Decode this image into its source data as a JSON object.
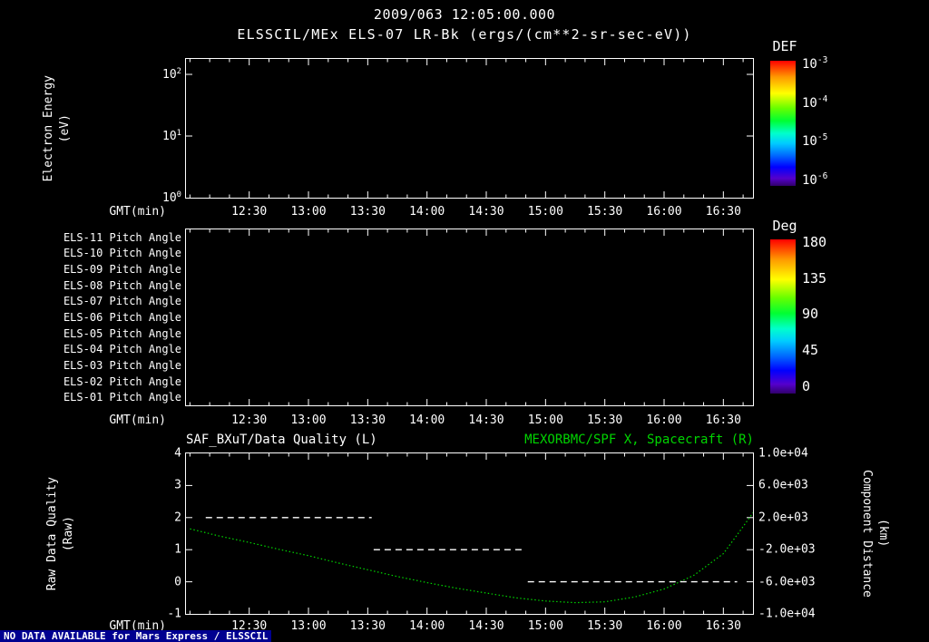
{
  "colors": {
    "background": "#000000",
    "foreground": "#ffffff",
    "accent_green": "#00d400",
    "footer_strip": "#000090"
  },
  "header": {
    "title": "2009/063 12:05:00.000",
    "subtitle": "ELSSCIL/MEx ELS-07 LR-Bk  (ergs/(cm**2-sr-sec-eV))"
  },
  "footer": {
    "message": "NO DATA AVAILABLE for Mars Express / ELSSCIL"
  },
  "time_axis": {
    "label": "GMT(min)",
    "domain": [
      718,
      1005
    ],
    "minor_step": 10,
    "ticks": [
      {
        "m": 750,
        "label": "12:30"
      },
      {
        "m": 780,
        "label": "13:00"
      },
      {
        "m": 810,
        "label": "13:30"
      },
      {
        "m": 840,
        "label": "14:00"
      },
      {
        "m": 870,
        "label": "14:30"
      },
      {
        "m": 900,
        "label": "15:00"
      },
      {
        "m": 930,
        "label": "15:30"
      },
      {
        "m": 960,
        "label": "16:00"
      },
      {
        "m": 990,
        "label": "16:30"
      }
    ]
  },
  "chart_data": [
    {
      "type": "heatmap",
      "name": "energy-spectrogram",
      "ylabel": "Electron Energy",
      "ylabel_units": "(eV)",
      "yscale": "log",
      "ylim": [
        1,
        178
      ],
      "yticks": [
        {
          "v": 100,
          "label": "10^2"
        },
        {
          "v": 10,
          "label": "10^1"
        },
        {
          "v": 1,
          "label": "10^0"
        }
      ],
      "xlabel": "GMT(min)",
      "colorbar": {
        "title": "DEF",
        "ticks": [
          "10^-3",
          "10^-4",
          "10^-5",
          "10^-6"
        ]
      },
      "values": []
    },
    {
      "type": "heatmap",
      "name": "pitch-angle-panels",
      "rows": [
        "ELS-11 Pitch Angle",
        "ELS-10 Pitch Angle",
        "ELS-09 Pitch Angle",
        "ELS-08 Pitch Angle",
        "ELS-07 Pitch Angle",
        "ELS-06 Pitch Angle",
        "ELS-05 Pitch Angle",
        "ELS-04 Pitch Angle",
        "ELS-03 Pitch Angle",
        "ELS-02 Pitch Angle",
        "ELS-01 Pitch Angle"
      ],
      "xlabel": "GMT(min)",
      "colorbar": {
        "title": "Deg",
        "ticks": [
          "180",
          "135",
          "90",
          "45",
          "0"
        ]
      },
      "values": []
    },
    {
      "type": "line",
      "name": "quality-and-distance",
      "title_left": "SAF_BXuT/Data Quality (L)",
      "title_right": "MEXORBMC/SPF X, Spacecraft (R)",
      "xlabel": "GMT(min)",
      "left_axis": {
        "label": "Raw Data Quality",
        "units": "(Raw)",
        "range": [
          -1,
          4
        ],
        "ticks": [
          "4",
          "3",
          "2",
          "1",
          "0",
          "-1"
        ]
      },
      "right_axis": {
        "label": "Component Distance",
        "units": "(km)",
        "range": [
          -10000,
          10000
        ],
        "ticks": [
          "1.0e+04",
          "6.0e+03",
          "2.0e+03",
          "-2.0e+03",
          "-6.0e+03",
          "-1.0e+04"
        ]
      },
      "series": [
        {
          "name": "MEXORBMC/SPF X Spacecraft",
          "axis": "right",
          "style": "dotted",
          "color": "#00d400",
          "points": [
            [
              720,
              600
            ],
            [
              735,
              -300
            ],
            [
              750,
              -1100
            ],
            [
              765,
              -1950
            ],
            [
              780,
              -2750
            ],
            [
              795,
              -3650
            ],
            [
              810,
              -4500
            ],
            [
              825,
              -5350
            ],
            [
              840,
              -6100
            ],
            [
              855,
              -6800
            ],
            [
              870,
              -7400
            ],
            [
              885,
              -8000
            ],
            [
              900,
              -8400
            ],
            [
              915,
              -8600
            ],
            [
              930,
              -8500
            ],
            [
              945,
              -7900
            ],
            [
              960,
              -6900
            ],
            [
              975,
              -5200
            ],
            [
              990,
              -2500
            ],
            [
              998,
              200
            ],
            [
              1005,
              2600
            ]
          ]
        },
        {
          "name": "SAF_BXuT Data Quality",
          "axis": "left",
          "style": "dashed",
          "color": "#ffffff",
          "segments": [
            {
              "value": 2,
              "from": 728,
              "to": 812
            },
            {
              "value": 1,
              "from": 813,
              "to": 890
            },
            {
              "value": 0,
              "from": 891,
              "to": 997
            }
          ]
        }
      ]
    }
  ]
}
